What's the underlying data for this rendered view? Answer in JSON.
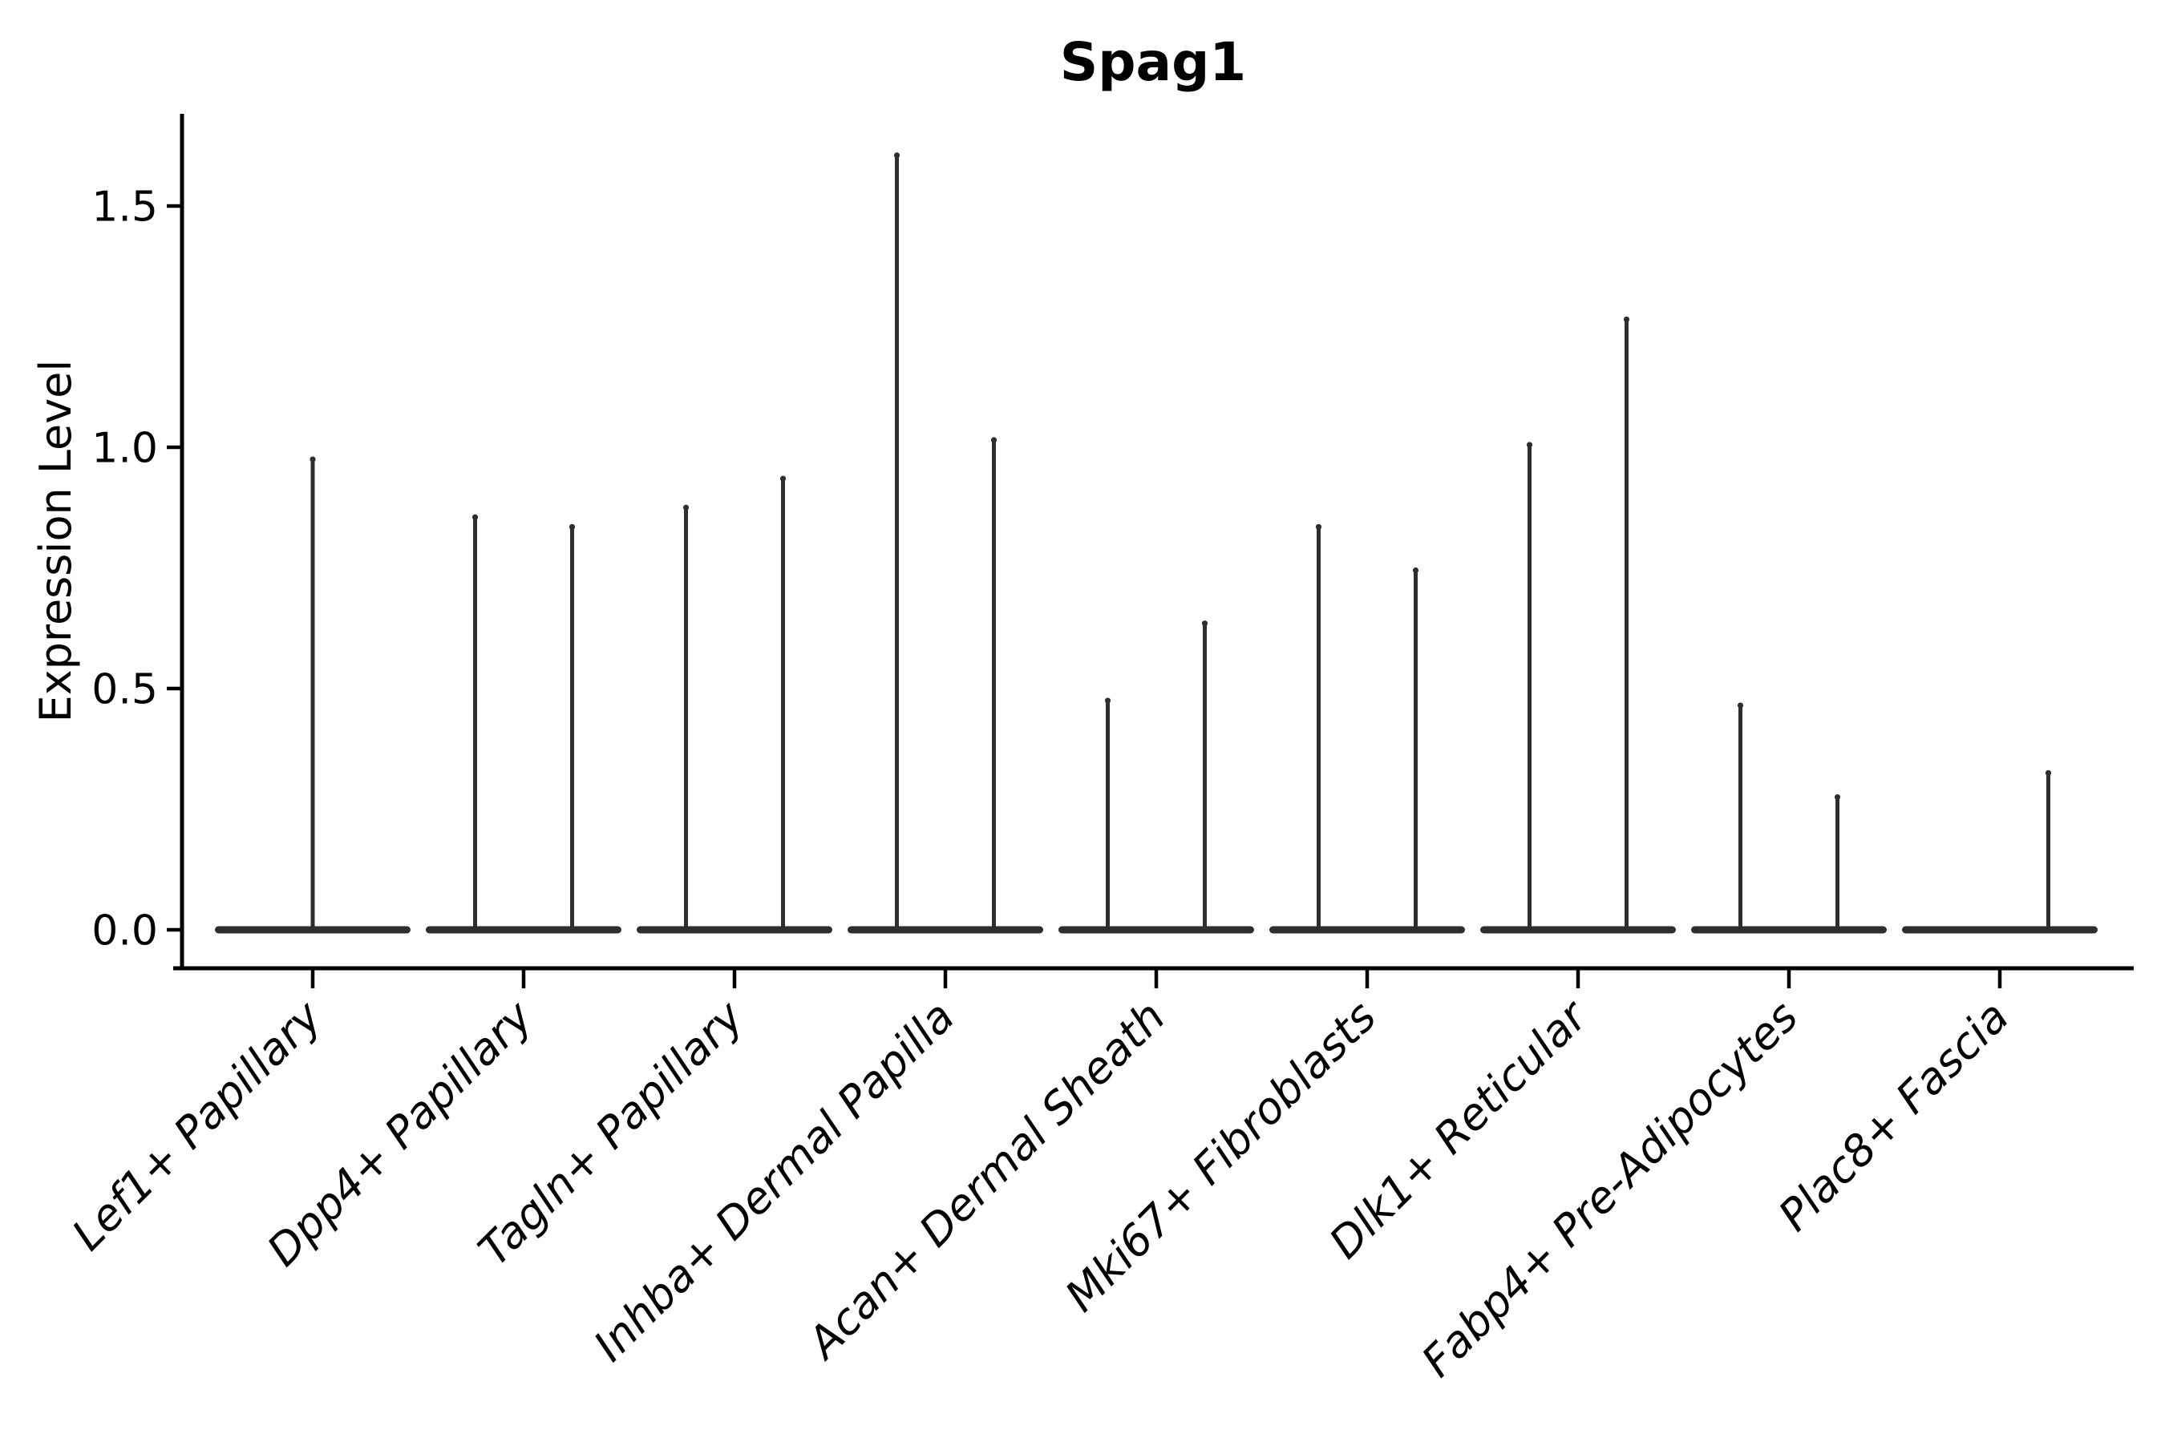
{
  "chart_data": {
    "type": "violin",
    "title": "Spag1",
    "xlabel": "",
    "ylabel": "Expression Level",
    "yticks": [
      0.0,
      0.5,
      1.0,
      1.5
    ],
    "ytick_labels": [
      "0.0",
      "0.5",
      "1.0",
      "1.5"
    ],
    "ylim": [
      -0.08,
      1.69
    ],
    "grid": false,
    "legend": "none",
    "categories": [
      "Lef1+ Papillary",
      "Dpp4+ Papillary",
      "Tagln+ Papillary",
      "Inhba+ Dermal Papilla",
      "Acan+ Dermal Sheath",
      "Mki67+ Fibroblasts",
      "Dlk1+ Reticular",
      "Fabp4+ Pre-Adipocytes",
      "Plac8+ Fascia"
    ],
    "series": [
      {
        "category": "Lef1+ Papillary",
        "baseline_value": 0.0,
        "violins": [
          {
            "side": "center",
            "max_expression": 0.98
          }
        ]
      },
      {
        "category": "Dpp4+ Papillary",
        "baseline_value": 0.0,
        "violins": [
          {
            "side": "left",
            "max_expression": 0.86
          },
          {
            "side": "right",
            "max_expression": 0.84
          }
        ]
      },
      {
        "category": "Tagln+ Papillary",
        "baseline_value": 0.0,
        "violins": [
          {
            "side": "left",
            "max_expression": 0.88
          },
          {
            "side": "right",
            "max_expression": 0.94
          }
        ]
      },
      {
        "category": "Inhba+ Dermal Papilla",
        "baseline_value": 0.0,
        "violins": [
          {
            "side": "left",
            "max_expression": 1.61
          },
          {
            "side": "right",
            "max_expression": 1.02
          }
        ]
      },
      {
        "category": "Acan+ Dermal Sheath",
        "baseline_value": 0.0,
        "violins": [
          {
            "side": "left",
            "max_expression": 0.48
          },
          {
            "side": "right",
            "max_expression": 0.64
          }
        ]
      },
      {
        "category": "Mki67+ Fibroblasts",
        "baseline_value": 0.0,
        "violins": [
          {
            "side": "left",
            "max_expression": 0.84
          },
          {
            "side": "right",
            "max_expression": 0.75
          }
        ]
      },
      {
        "category": "Dlk1+ Reticular",
        "baseline_value": 0.0,
        "violins": [
          {
            "side": "left",
            "max_expression": 1.01
          },
          {
            "side": "right",
            "max_expression": 1.27
          }
        ]
      },
      {
        "category": "Fabp4+ Pre-Adipocytes",
        "baseline_value": 0.0,
        "violins": [
          {
            "side": "left",
            "max_expression": 0.47
          },
          {
            "side": "right",
            "max_expression": 0.28
          }
        ]
      },
      {
        "category": "Plac8+ Fascia",
        "baseline_value": 0.0,
        "violins": [
          {
            "side": "right",
            "max_expression": 0.33
          }
        ]
      }
    ],
    "style": {
      "violin_color": "#2e2e2e",
      "axis_color": "#000000",
      "text_color": "#000000",
      "background": "#ffffff",
      "x_label_rotation_deg": 45,
      "x_labels_italic": true
    }
  }
}
